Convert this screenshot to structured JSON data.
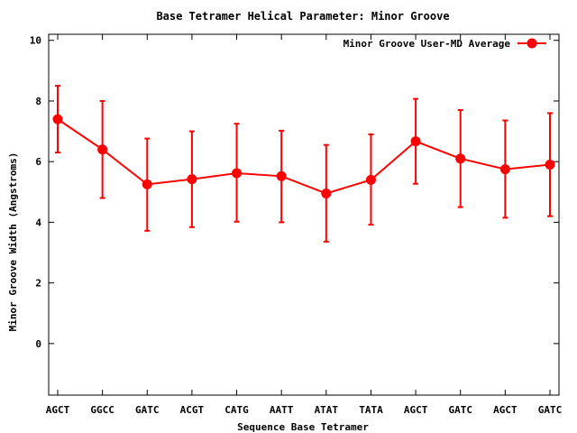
{
  "chart_data": {
    "type": "line",
    "title": "Base Tetramer Helical Parameter: Minor Groove",
    "xlabel": "Sequence Base Tetramer",
    "ylabel": "Minor Groove Width (Angstroms)",
    "ylim": [
      -1.7,
      10.2
    ],
    "yticks": [
      "0",
      "2",
      "4",
      "6",
      "8",
      "10"
    ],
    "ytick_values": [
      0,
      2,
      4,
      6,
      8,
      10
    ],
    "categories": [
      "AGCT",
      "GGCC",
      "GATC",
      "ACGT",
      "CATG",
      "AATT",
      "ATAT",
      "TATA",
      "AGCT",
      "GATC",
      "AGCT",
      "GATC"
    ],
    "series": [
      {
        "name": "Minor Groove User-MD Average",
        "color": "#ff0000",
        "values": [
          7.4,
          6.4,
          5.25,
          5.42,
          5.62,
          5.52,
          4.95,
          5.4,
          6.67,
          6.1,
          5.75,
          5.9
        ],
        "err_low": [
          6.3,
          4.8,
          3.72,
          3.84,
          4.02,
          4.0,
          3.36,
          3.92,
          5.27,
          4.5,
          4.15,
          4.2
        ],
        "err_high": [
          8.5,
          8.0,
          6.76,
          7.0,
          7.25,
          7.02,
          6.55,
          6.9,
          8.07,
          7.7,
          7.36,
          7.6
        ]
      }
    ],
    "grid": false,
    "legend_position": "top-right"
  }
}
